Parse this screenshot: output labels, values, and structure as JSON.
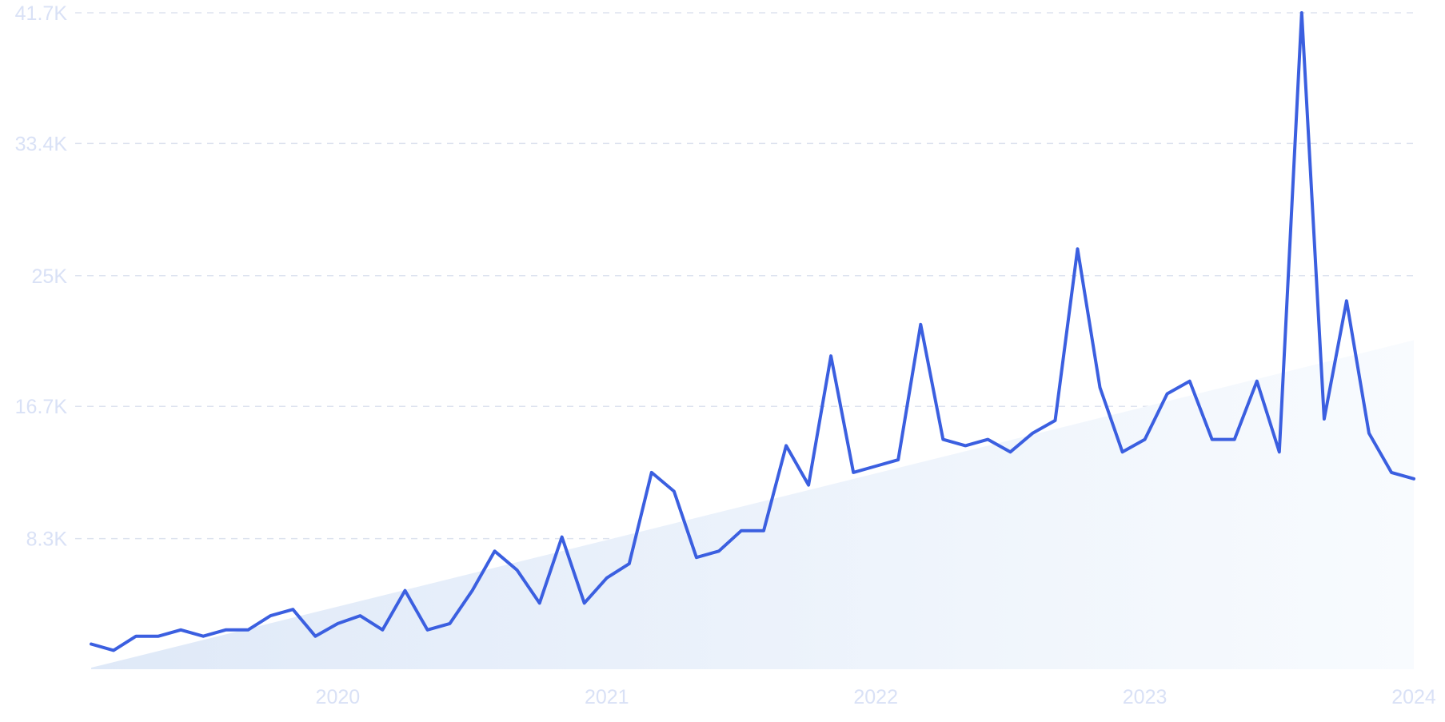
{
  "chart_data": {
    "type": "line",
    "title": "",
    "xlabel": "",
    "ylabel": "",
    "x_ticks": [
      "2020",
      "2021",
      "2022",
      "2023",
      "2024"
    ],
    "y_ticks": [
      "8.3K",
      "16.7K",
      "25K",
      "33.4K",
      "41.7K"
    ],
    "ylim": [
      0,
      41700
    ],
    "xlim": [
      "2019-02",
      "2024-01"
    ],
    "grid": true,
    "legend": "none",
    "series": [
      {
        "x": [
          "2019-02",
          "2019-03",
          "2019-04",
          "2019-05",
          "2019-06",
          "2019-07",
          "2019-08",
          "2019-09",
          "2019-10",
          "2019-11",
          "2019-12",
          "2020-01",
          "2020-02",
          "2020-03",
          "2020-04",
          "2020-05",
          "2020-06",
          "2020-07",
          "2020-08",
          "2020-09",
          "2020-10",
          "2020-11",
          "2020-12",
          "2021-01",
          "2021-02",
          "2021-03",
          "2021-04",
          "2021-05",
          "2021-06",
          "2021-07",
          "2021-08",
          "2021-09",
          "2021-10",
          "2021-11",
          "2021-12",
          "2022-01",
          "2022-02",
          "2022-03",
          "2022-04",
          "2022-05",
          "2022-06",
          "2022-07",
          "2022-08",
          "2022-09",
          "2022-10",
          "2022-11",
          "2022-12",
          "2023-01",
          "2023-02",
          "2023-03",
          "2023-04",
          "2023-05",
          "2023-06",
          "2023-07",
          "2023-08",
          "2023-09",
          "2023-10",
          "2023-11",
          "2023-12",
          "2024-01"
        ],
        "values": [
          1600,
          1200,
          2100,
          2100,
          2500,
          2100,
          2500,
          2500,
          3400,
          3800,
          2100,
          2900,
          3400,
          2500,
          5000,
          2500,
          2900,
          5000,
          7500,
          6300,
          4200,
          8400,
          4200,
          5800,
          6700,
          12500,
          11300,
          7100,
          7500,
          8800,
          8800,
          14200,
          11700,
          19900,
          12500,
          12900,
          13300,
          21900,
          14600,
          14200,
          14600,
          13800,
          15000,
          15800,
          26700,
          17900,
          13800,
          14600,
          17500,
          18300,
          14600,
          14600,
          18300,
          13800,
          41700,
          15900,
          23400,
          15000,
          12500,
          12100
        ],
        "trend": [
          100,
          20900
        ]
      }
    ],
    "colors": {
      "line": "#3b5fe0",
      "trend_fill_start": "#dfe9f8",
      "trend_fill_end": "#f8fbfe",
      "tick_label": "#d9e1f6",
      "grid": "#dde3ef"
    }
  }
}
